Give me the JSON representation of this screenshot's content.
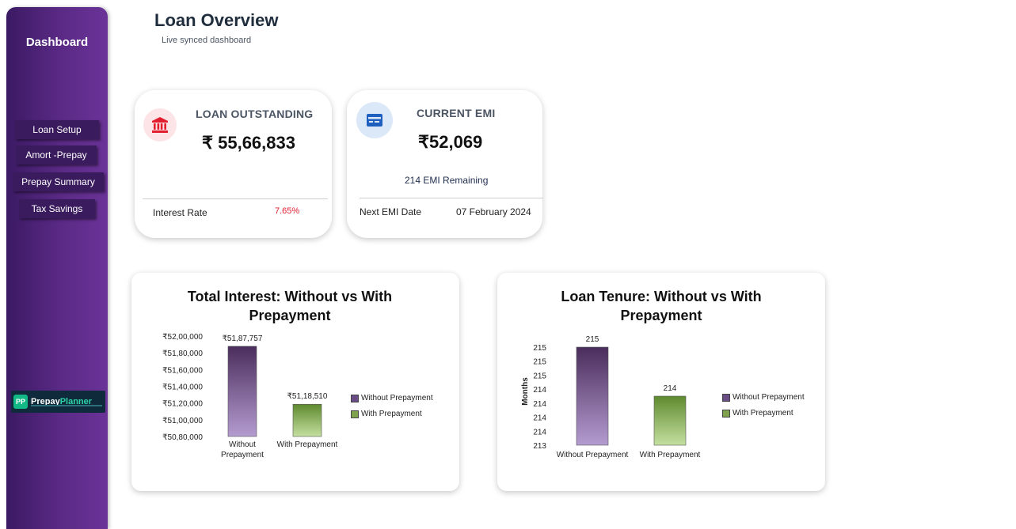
{
  "sidebar": {
    "title": "Dashboard",
    "items": [
      {
        "label": "Loan Setup"
      },
      {
        "label": "Amort -Prepay"
      },
      {
        "label": "Prepay Summary"
      },
      {
        "label": "Tax Savings"
      }
    ],
    "logo": {
      "badge": "PP",
      "name_part1": "Prepay",
      "name_part2": "Planner"
    }
  },
  "header": {
    "title": "Loan Overview",
    "subtitle": "Live synced dashboard"
  },
  "cards": {
    "loan_outstanding": {
      "label": "LOAN OUTSTANDING",
      "value": "₹ 55,66,833",
      "footer_label": "Interest Rate",
      "footer_value": "7.65%",
      "icon": "bank-icon"
    },
    "current_emi": {
      "label": "CURRENT EMI",
      "value": "₹52,069",
      "remaining": "214 EMI Remaining",
      "footer_label": "Next EMI Date",
      "footer_value": "07 February 2024",
      "icon": "card-icon"
    }
  },
  "colors": {
    "sidebar_dark": "#3b1a63",
    "sidebar_light": "#6a3398",
    "purple_bar_top": "#4a2d5c",
    "purple_bar_bottom": "#b49bd0",
    "green_bar_top": "#5e8a2e",
    "green_bar_bottom": "#c5e0a0",
    "rate_red": "#e11d2e"
  },
  "chart_data": [
    {
      "type": "bar",
      "title": "Total Interest: Without vs With Prepayment",
      "title_line1": "Total Interest: Without vs With",
      "title_line2": "Prepayment",
      "categories": [
        "Without Prepayment",
        "With Prepayment"
      ],
      "category_lines": [
        [
          "Without",
          "Prepayment"
        ],
        [
          "With Prepayment"
        ]
      ],
      "values": [
        5187757,
        5118510
      ],
      "value_labels": [
        "₹51,87,757",
        "₹51,18,510"
      ],
      "ylim": [
        5080000,
        5200000
      ],
      "yticks": [
        "₹52,00,000",
        "₹51,80,000",
        "₹51,60,000",
        "₹51,40,000",
        "₹51,20,000",
        "₹51,00,000",
        "₹50,80,000"
      ],
      "ylabel": "",
      "legend": [
        "Without Prepayment",
        "With Prepayment"
      ],
      "legend_position": "right"
    },
    {
      "type": "bar",
      "title": "Loan Tenure: Without vs With Prepayment",
      "title_line1": "Loan Tenure: Without vs With",
      "title_line2": "Prepayment",
      "categories": [
        "Without Prepayment",
        "With Prepayment"
      ],
      "category_lines": [
        [
          "Without Prepayment"
        ],
        [
          "With Prepayment"
        ]
      ],
      "values": [
        215,
        214
      ],
      "value_labels": [
        "215",
        "214"
      ],
      "ylim": [
        213,
        215
      ],
      "yticks": [
        "215",
        "215",
        "215",
        "214",
        "214",
        "214",
        "214",
        "213"
      ],
      "ylabel": "Months",
      "legend": [
        "Without Prepayment",
        "With Prepayment"
      ],
      "legend_position": "right"
    }
  ]
}
